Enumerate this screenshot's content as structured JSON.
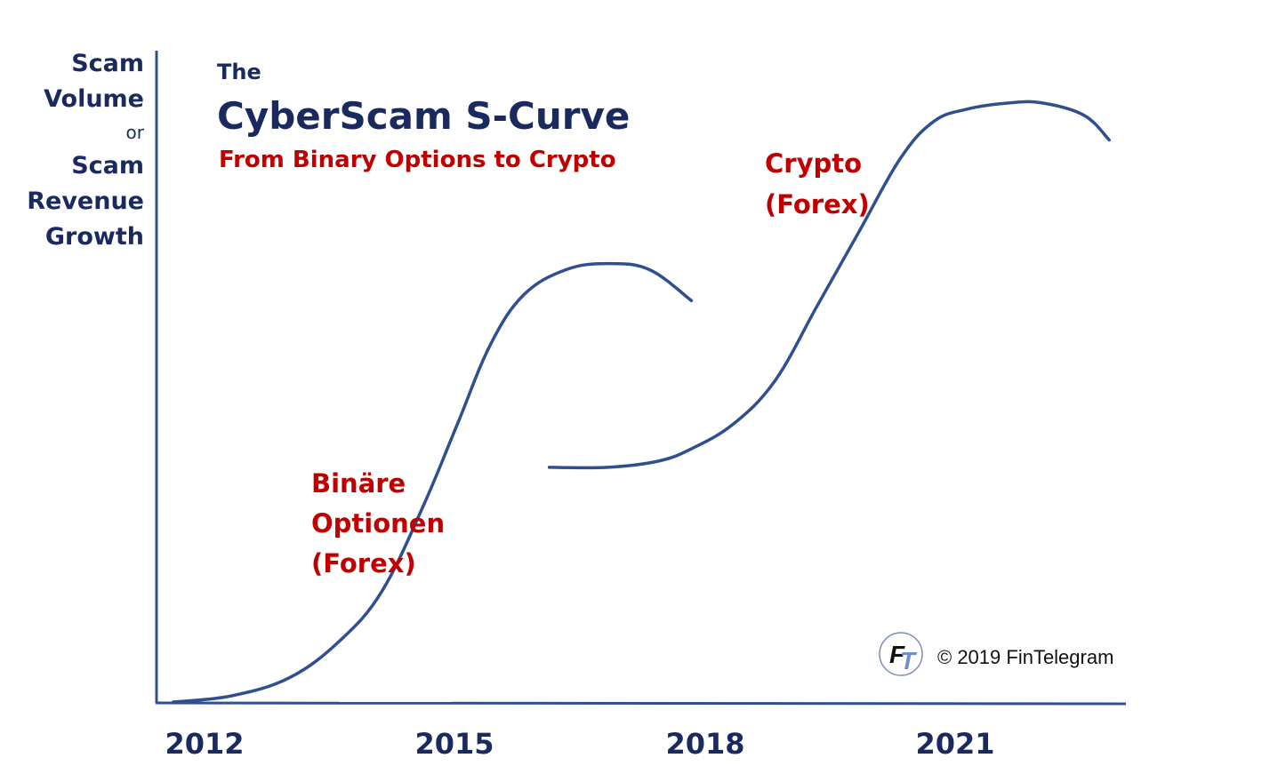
{
  "colors": {
    "axis": "#2f4f8f",
    "curve": "#2f4f8f",
    "title": "#1a2a5e",
    "accent_red": "#c00000"
  },
  "chart_data": {
    "type": "line",
    "title_prefix": "The",
    "title": "CyberScam S-Curve",
    "subtitle": "From Binary Options to Crypto",
    "ylabel_lines": [
      "Scam",
      "Volume",
      "or",
      "Scam",
      "Revenue",
      "Growth"
    ],
    "xlabel": "",
    "x_ticks": [
      "2012",
      "2015",
      "2018",
      "2021"
    ],
    "xlim": [
      2011.6,
      2023.2
    ],
    "ylim": [
      0,
      100
    ],
    "grid": false,
    "series": [
      {
        "x": [
          2011.8,
          2012.5,
          2013.2,
          2013.8,
          2014.3,
          2014.8,
          2015.2,
          2015.6,
          2016.0,
          2016.5,
          2017.0,
          2017.5,
          2018.0
        ],
        "y": [
          0,
          1,
          4,
          10,
          18,
          32,
          45,
          58,
          66,
          70,
          71,
          70,
          65
        ]
      },
      {
        "x": [
          2016.3,
          2017.0,
          2017.6,
          2018.0,
          2018.5,
          2019.0,
          2019.5,
          2020.0,
          2020.5,
          2020.9,
          2021.3,
          2021.8,
          2022.2,
          2022.7,
          2023.0
        ],
        "y": [
          38,
          38,
          39,
          41,
          45,
          52,
          64,
          76,
          88,
          94,
          96,
          97,
          97,
          95,
          91
        ]
      }
    ],
    "annotations": [
      {
        "lines": [
          "Binäre",
          "Optionen",
          "(Forex)"
        ]
      },
      {
        "lines": [
          "Crypto",
          "(Forex)"
        ]
      }
    ],
    "credit": "© 2019 FinTelegram",
    "logo_text": "FT"
  }
}
